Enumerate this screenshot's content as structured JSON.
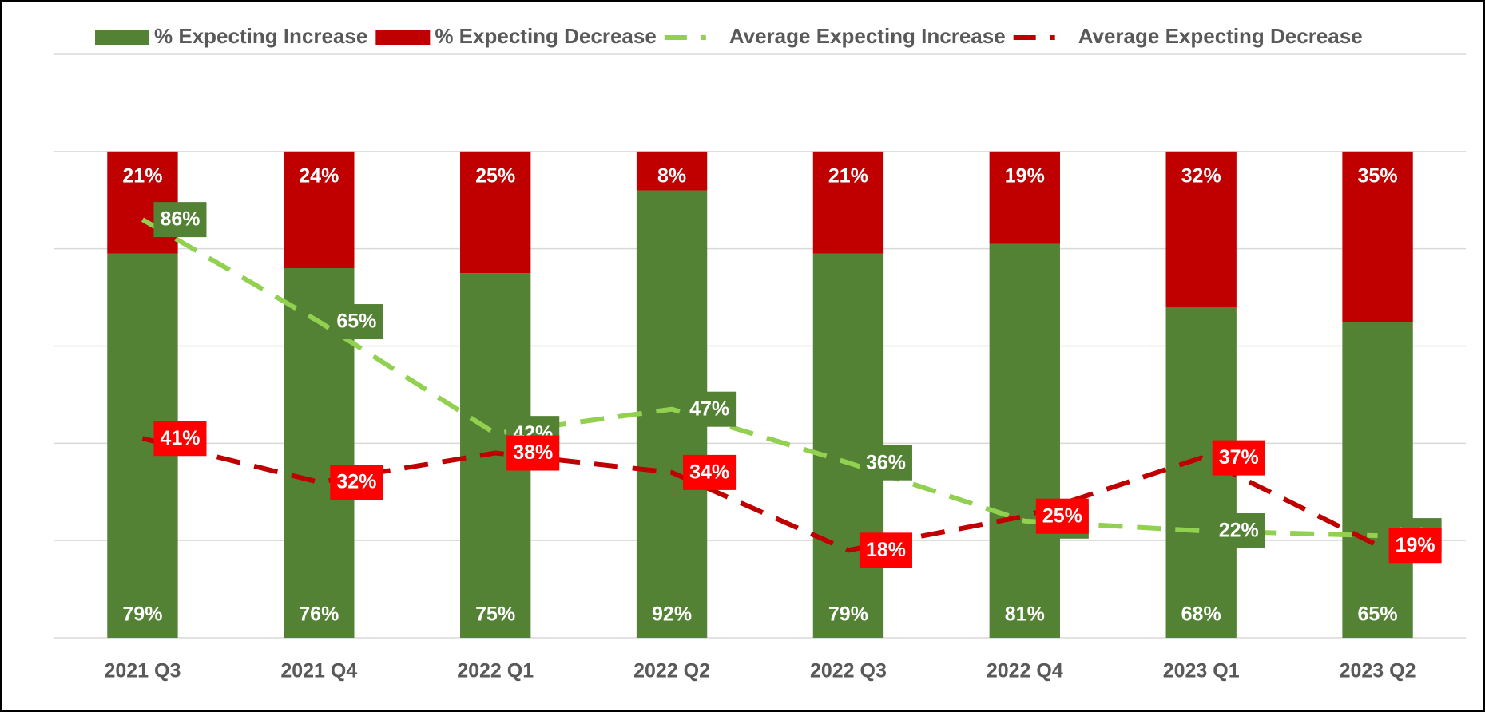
{
  "chart_data": {
    "type": "bar",
    "categories": [
      "2021 Q3",
      "2021 Q4",
      "2022 Q1",
      "2022 Q2",
      "2022 Q3",
      "2022 Q4",
      "2023 Q1",
      "2023 Q2"
    ],
    "series": [
      {
        "name": "% Expecting Increase",
        "type": "bar",
        "color": "#548235",
        "values": [
          79,
          76,
          75,
          92,
          79,
          81,
          68,
          65
        ],
        "value_labels": [
          "79%",
          "76%",
          "75%",
          "92%",
          "79%",
          "81%",
          "68%",
          "65%"
        ]
      },
      {
        "name": "% Expecting Decrease",
        "type": "bar",
        "color": "#c00000",
        "values": [
          21,
          24,
          25,
          8,
          21,
          19,
          32,
          35
        ],
        "value_labels": [
          "21%",
          "24%",
          "25%",
          "8%",
          "21%",
          "19%",
          "32%",
          "35%"
        ]
      },
      {
        "name": "Average Expecting Increase",
        "type": "line",
        "color": "#92d050",
        "label_color": "#548235",
        "values": [
          86,
          65,
          42,
          47,
          36,
          24,
          22,
          21
        ],
        "value_labels": [
          "86%",
          "65%",
          "42%",
          "47%",
          "36%",
          "24%",
          "22%",
          "21%"
        ]
      },
      {
        "name": "Average Expecting Decrease",
        "type": "line",
        "color": "#c00000",
        "label_color": "#ff0000",
        "values": [
          41,
          32,
          38,
          34,
          18,
          25,
          37,
          19
        ],
        "value_labels": [
          "41%",
          "32%",
          "38%",
          "34%",
          "18%",
          "25%",
          "37%",
          "19%"
        ]
      }
    ],
    "stacked": true,
    "ylim": [
      0,
      120
    ],
    "yticks": [
      0,
      20,
      40,
      60,
      80,
      100,
      120
    ],
    "grid": true,
    "legend": "top"
  }
}
